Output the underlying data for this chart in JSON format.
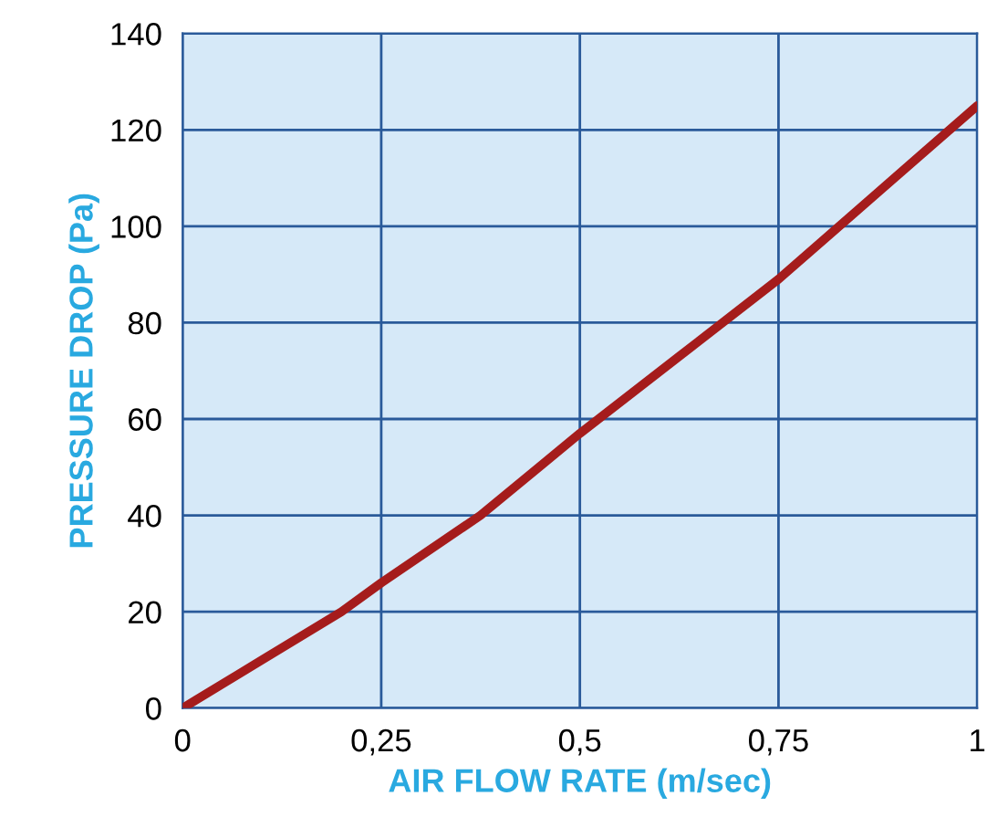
{
  "chart_data": {
    "type": "line",
    "xlabel": "AIR FLOW RATE (m/sec)",
    "ylabel": "PRESSURE DROP (Pa)",
    "x": [
      0,
      0.1,
      0.2,
      0.25,
      0.375,
      0.5,
      0.625,
      0.75,
      0.875,
      1
    ],
    "series": [
      {
        "color": "#a51c1c",
        "values": [
          0,
          10,
          20,
          26,
          40,
          57,
          73,
          89,
          107,
          125
        ]
      }
    ],
    "xlim": [
      0,
      1
    ],
    "ylim": [
      0,
      140
    ],
    "xticks": [
      0,
      {
        "value": 0.25,
        "label": "0,25"
      },
      {
        "value": 0.5,
        "label": "0,5"
      },
      {
        "value": 0.75,
        "label": "0,75"
      },
      1
    ],
    "yticks": [
      0,
      20,
      40,
      60,
      80,
      100,
      120,
      140
    ],
    "grid": true,
    "marker": "none",
    "line_style": "solid"
  }
}
